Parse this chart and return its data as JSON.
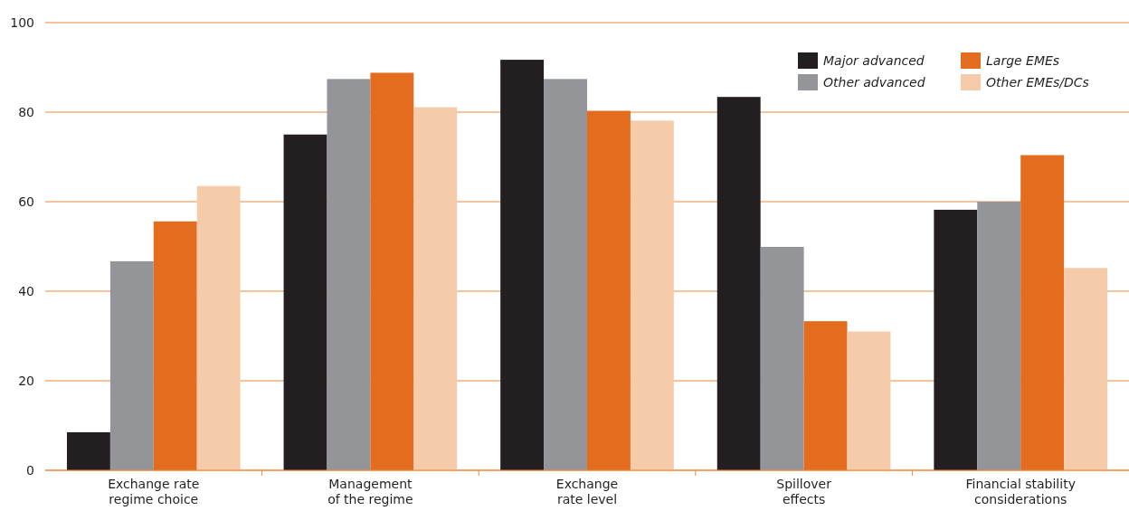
{
  "chart_data": {
    "type": "bar",
    "categories": [
      "Exchange rate\nregime choice",
      "Management\nof the regime",
      "Exchange\nrate level",
      "Spillover\neffects",
      "Financial stability\nconsiderations"
    ],
    "series": [
      {
        "name": "Major advanced",
        "color": "#231f20",
        "values": [
          8.5,
          75,
          91.7,
          83.4,
          58.2
        ]
      },
      {
        "name": "Other advanced",
        "color": "#939598",
        "values": [
          46.7,
          87.4,
          87.4,
          49.9,
          60
        ]
      },
      {
        "name": "Large EMEs",
        "color": "#e36c1e",
        "values": [
          55.6,
          88.8,
          80.3,
          33.3,
          70.4
        ]
      },
      {
        "name": "Other EMEs/DCs",
        "color": "#f5cbaa",
        "values": [
          63.5,
          81.1,
          78.1,
          31,
          45.2
        ]
      }
    ],
    "ylim": [
      0,
      100
    ],
    "yticks": [
      0,
      20,
      40,
      60,
      80,
      100
    ],
    "grid": "y",
    "legend": "top right"
  }
}
